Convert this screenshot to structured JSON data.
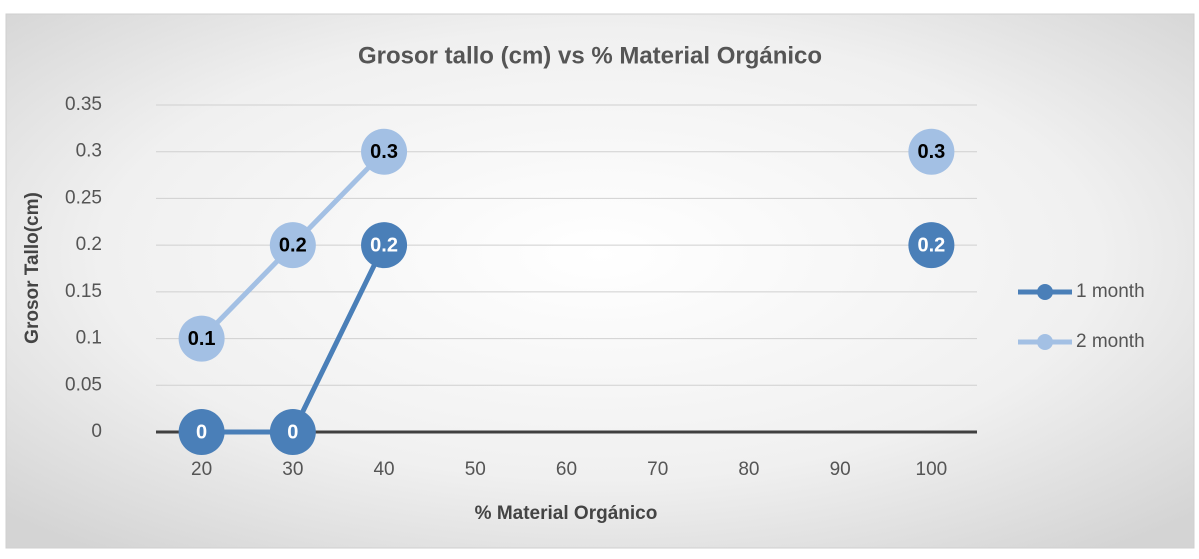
{
  "chart_data": {
    "type": "line",
    "title": "Grosor tallo (cm) vs % Material Orgánico",
    "x_label": "% Material Orgánico",
    "y_label": "Grosor Tallo(cm)",
    "categories": [
      20,
      30,
      40,
      50,
      60,
      70,
      80,
      90,
      100
    ],
    "series": [
      {
        "name": "1 month",
        "color": "#4a7fb8",
        "values": [
          0,
          0,
          0.2,
          null,
          null,
          null,
          null,
          null,
          0.2
        ]
      },
      {
        "name": "2 month",
        "color": "#a3c0e4",
        "values": [
          0.1,
          0.2,
          0.3,
          null,
          null,
          null,
          null,
          null,
          0.3
        ]
      }
    ],
    "ylim": [
      0,
      0.35
    ],
    "yticks": [
      0,
      0.05,
      0.1,
      0.15,
      0.2,
      0.25,
      0.3,
      0.35
    ],
    "grid": true,
    "legend": "right"
  }
}
